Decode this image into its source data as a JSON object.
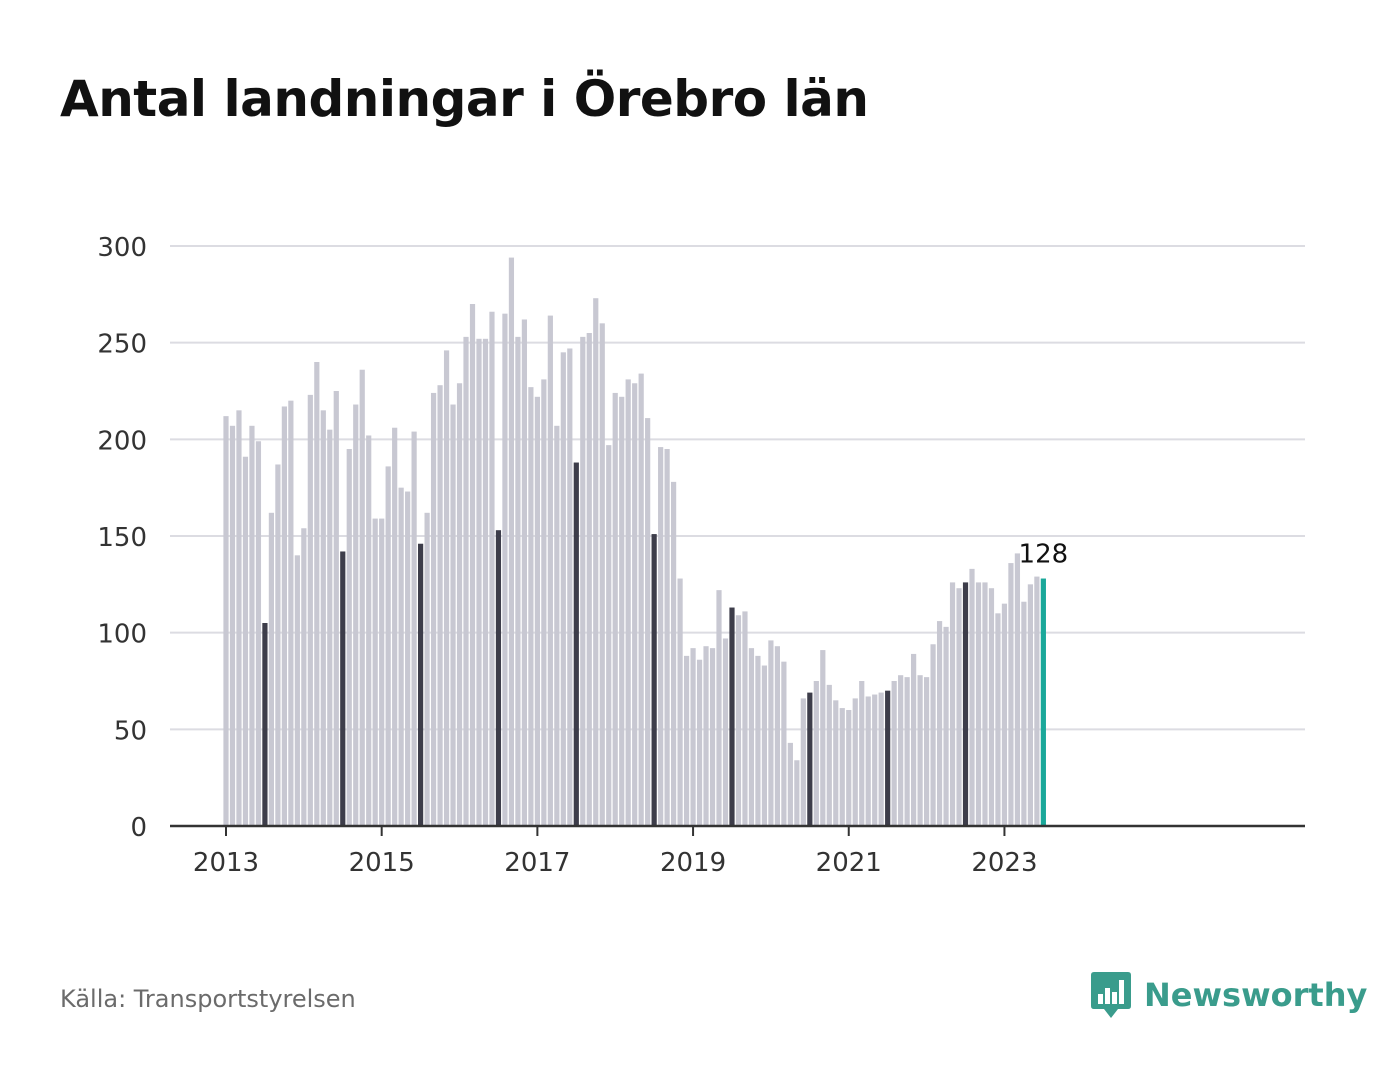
{
  "title": "Antal landningar i Örebro län",
  "source": "Källa: Transportstyrelsen",
  "brand": "Newsworthy",
  "colors": {
    "bar": "#c8c8d2",
    "highlight": "#3d3d4a",
    "latest": "#1aa89a",
    "grid": "#dcdce2",
    "axis": "#333333",
    "brand": "#3a9c8c"
  },
  "chart_data": {
    "type": "bar",
    "title": "Antal landningar i Örebro län",
    "start": "2013-01",
    "interval": "month",
    "ylim": [
      0,
      300
    ],
    "yticks": [
      0,
      50,
      100,
      150,
      200,
      250,
      300
    ],
    "xticks": [
      "2013",
      "2015",
      "2017",
      "2019",
      "2021",
      "2023"
    ],
    "grid": true,
    "highlight": "July of each year (dark), latest month (teal)",
    "latest_label": "128",
    "values": [
      212,
      207,
      215,
      191,
      207,
      199,
      105,
      162,
      187,
      217,
      220,
      140,
      154,
      223,
      240,
      215,
      205,
      225,
      142,
      195,
      218,
      236,
      202,
      159,
      159,
      186,
      206,
      175,
      173,
      204,
      146,
      162,
      224,
      228,
      246,
      218,
      229,
      253,
      270,
      252,
      252,
      266,
      153,
      265,
      294,
      253,
      262,
      227,
      222,
      231,
      264,
      207,
      245,
      247,
      188,
      253,
      255,
      273,
      260,
      197,
      224,
      222,
      231,
      229,
      234,
      211,
      151,
      196,
      195,
      178,
      128,
      88,
      92,
      86,
      93,
      92,
      122,
      97,
      113,
      109,
      111,
      92,
      88,
      83,
      96,
      93,
      85,
      43,
      34,
      66,
      69,
      75,
      91,
      73,
      65,
      61,
      60,
      66,
      75,
      67,
      68,
      69,
      70,
      75,
      78,
      77,
      89,
      78,
      77,
      94,
      106,
      103,
      126,
      123,
      126,
      133,
      126,
      126,
      123,
      110,
      115,
      136,
      141,
      116,
      125,
      129,
      128
    ]
  }
}
